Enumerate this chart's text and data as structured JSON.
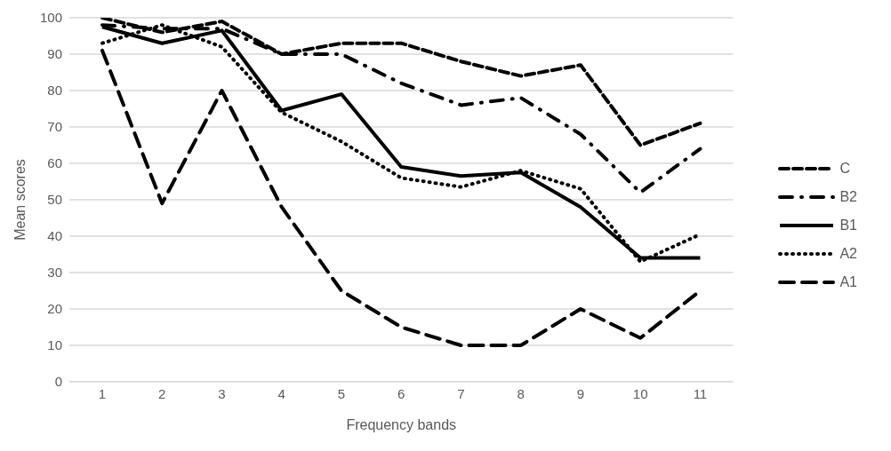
{
  "chart_data": {
    "type": "line",
    "xlabel": "Frequency bands",
    "ylabel": "Mean scores",
    "categories": [
      "1",
      "2",
      "3",
      "4",
      "5",
      "6",
      "7",
      "8",
      "9",
      "10",
      "11"
    ],
    "series": [
      {
        "name": "C",
        "color": "#000000",
        "line_style": "dashed",
        "values": [
          100,
          96,
          99,
          90,
          93,
          93,
          88,
          84,
          87,
          65,
          71
        ]
      },
      {
        "name": "B2",
        "color": "#000000",
        "line_style": "dashdot",
        "values": [
          98,
          97,
          97,
          90,
          90,
          82,
          76,
          78,
          68,
          52,
          64
        ]
      },
      {
        "name": "B1",
        "color": "#000000",
        "line_style": "solid",
        "values": [
          97.5,
          93,
          96.5,
          74.5,
          79,
          59,
          56.5,
          57.5,
          48,
          34,
          34
        ]
      },
      {
        "name": "A2",
        "color": "#000000",
        "line_style": "dotted",
        "values": [
          93,
          98,
          92,
          74,
          66,
          56,
          53.5,
          58,
          53,
          33,
          40.5
        ]
      },
      {
        "name": "A1",
        "color": "#000000",
        "line_style": "longdash",
        "values": [
          91,
          49,
          80,
          48,
          25,
          15,
          10,
          10,
          20,
          12,
          25
        ]
      }
    ],
    "ylim": [
      0,
      100
    ],
    "yticks": [
      0,
      10,
      20,
      30,
      40,
      50,
      60,
      70,
      80,
      90,
      100
    ],
    "grid": "y",
    "legend": "right",
    "marker": "none"
  }
}
